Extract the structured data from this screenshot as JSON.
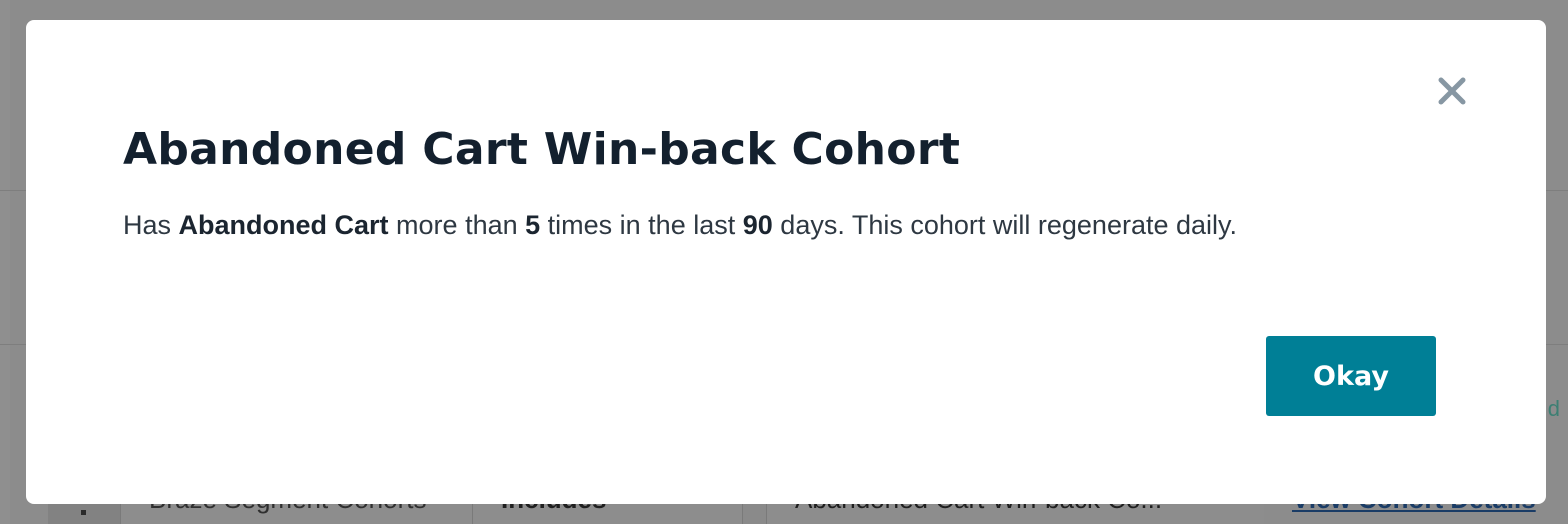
{
  "background": {
    "right_text_fragment": "d",
    "row": {
      "cell_1": "Braze Segment Cohorts",
      "cell_2": "Includes",
      "cell_3": "Abandoned Cart Win-back Co...",
      "cell_4_link": "View Cohort Details"
    }
  },
  "modal": {
    "close_icon": "close-icon",
    "title": "Abandoned Cart Win-back Cohort",
    "description": {
      "prefix": "Has ",
      "event_name": "Abandoned Cart",
      "mid1": " more than ",
      "count": "5",
      "mid2": " times in the last ",
      "days": "90",
      "suffix": " days. This cohort will regenerate daily."
    },
    "okay_label": "Okay"
  },
  "colors": {
    "overlay": "#8c8c8c",
    "modal_bg": "#ffffff",
    "title": "#13202e",
    "primary_button": "#007f96",
    "close_icon": "#8797a3"
  }
}
